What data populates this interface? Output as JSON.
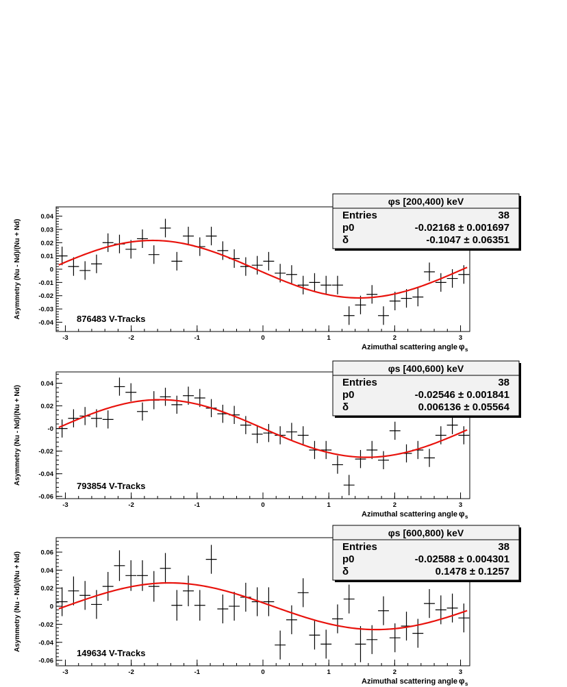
{
  "chart_data": [
    {
      "type": "scatter",
      "title": "φs [200,400) keV",
      "xlabel": "Azimuthal scattering angle",
      "xlabel_symbol": "φ",
      "xlabel_sub": "s",
      "ylabel": "Asymmetry (Nu - Nd)/(Nu + Nd)",
      "annotation": "876483 V-Tracks",
      "stats": [
        {
          "label": "Entries",
          "value": "38"
        },
        {
          "label": "p0",
          "value": "-0.02168 ± 0.001697"
        },
        {
          "label": "δ",
          "value": "-0.1047 ± 0.06351"
        }
      ],
      "xlim": [
        -3.14,
        3.14
      ],
      "ylim": [
        -0.047,
        0.047
      ],
      "yticks": [
        -0.04,
        -0.03,
        -0.02,
        -0.01,
        0,
        0.01,
        0.02,
        0.03,
        0.04
      ],
      "ytick_labels": [
        "-0.04",
        "-0.03",
        "-0.02",
        "-0.01",
        "0",
        "0.01",
        "0.02",
        "0.03",
        "0.04"
      ],
      "xticks": [
        -3,
        -2,
        -1,
        0,
        1,
        2,
        3
      ],
      "xtick_labels": [
        "-3",
        "-2",
        "-1",
        "0",
        "1",
        "2",
        "3"
      ],
      "fit": {
        "amplitude": -0.02168,
        "phase": -0.1047
      },
      "points": {
        "y": [
          0.01,
          0.002,
          -0.001,
          0.004,
          0.02,
          0.019,
          0.015,
          0.023,
          0.011,
          0.031,
          0.006,
          0.025,
          0.017,
          0.025,
          0.014,
          0.008,
          0.002,
          0.003,
          0.006,
          -0.003,
          -0.004,
          -0.012,
          -0.01,
          -0.012,
          -0.012,
          -0.035,
          -0.027,
          -0.019,
          -0.035,
          -0.024,
          -0.022,
          -0.021,
          -0.002,
          -0.01,
          -0.007,
          -0.004
        ],
        "err": [
          0.007,
          0.007,
          0.007,
          0.007,
          0.007,
          0.007,
          0.007,
          0.007,
          0.007,
          0.007,
          0.007,
          0.007,
          0.007,
          0.007,
          0.007,
          0.007,
          0.007,
          0.007,
          0.007,
          0.007,
          0.007,
          0.007,
          0.007,
          0.007,
          0.007,
          0.007,
          0.007,
          0.007,
          0.007,
          0.007,
          0.007,
          0.007,
          0.007,
          0.007,
          0.007,
          0.007
        ]
      }
    },
    {
      "type": "scatter",
      "title": "φs [400,600) keV",
      "xlabel": "Azimuthal scattering angle",
      "xlabel_symbol": "φ",
      "xlabel_sub": "s",
      "ylabel": "Asymmetry (Nu - Nd)/(Nu + Nd)",
      "annotation": "793854 V-Tracks",
      "stats": [
        {
          "label": "Entries",
          "value": "38"
        },
        {
          "label": "p0",
          "value": "-0.02546 ± 0.001841"
        },
        {
          "label": "δ",
          "value": "0.006136 ± 0.05564"
        }
      ],
      "xlim": [
        -3.14,
        3.14
      ],
      "ylim": [
        -0.062,
        0.05
      ],
      "yticks": [
        -0.06,
        -0.04,
        -0.02,
        0,
        0.02,
        0.04
      ],
      "ytick_labels": [
        "-0.06",
        "-0.04",
        "-0.02",
        "-0",
        "0.02",
        "0.04"
      ],
      "xticks": [
        -3,
        -2,
        -1,
        0,
        1,
        2,
        3
      ],
      "xtick_labels": [
        "-3",
        "-2",
        "-1",
        "0",
        "1",
        "2",
        "3"
      ],
      "fit": {
        "amplitude": -0.02546,
        "phase": 0.006136
      },
      "points": {
        "y": [
          0.0,
          0.009,
          0.011,
          0.009,
          0.008,
          0.037,
          0.032,
          0.015,
          0.025,
          0.028,
          0.021,
          0.029,
          0.027,
          0.018,
          0.013,
          0.012,
          0.003,
          -0.005,
          -0.004,
          -0.006,
          -0.003,
          -0.006,
          -0.019,
          -0.019,
          -0.032,
          -0.05,
          -0.027,
          -0.019,
          -0.028,
          -0.002,
          -0.022,
          -0.019,
          -0.026,
          -0.006,
          0.003,
          -0.006
        ],
        "err": [
          0.008,
          0.008,
          0.008,
          0.008,
          0.008,
          0.008,
          0.008,
          0.008,
          0.008,
          0.008,
          0.008,
          0.008,
          0.008,
          0.008,
          0.008,
          0.008,
          0.008,
          0.008,
          0.008,
          0.008,
          0.008,
          0.008,
          0.008,
          0.008,
          0.008,
          0.009,
          0.008,
          0.008,
          0.008,
          0.008,
          0.008,
          0.008,
          0.008,
          0.008,
          0.008,
          0.008
        ]
      }
    },
    {
      "type": "scatter",
      "title": "φs [600,800) keV",
      "xlabel": "Azimuthal scattering angle",
      "xlabel_symbol": "φ",
      "xlabel_sub": "s",
      "ylabel": "Asymmetry (Nu - Nd)/(Nu + Nd)",
      "annotation": "149634 V-Tracks",
      "stats": [
        {
          "label": "Entries",
          "value": "38"
        },
        {
          "label": "p0",
          "value": "-0.02588 ± 0.004301"
        },
        {
          "label": "δ",
          "value": "0.1478 ± 0.1257"
        }
      ],
      "xlim": [
        -3.14,
        3.14
      ],
      "ylim": [
        -0.066,
        0.076
      ],
      "yticks": [
        -0.06,
        -0.04,
        -0.02,
        0,
        0.02,
        0.04,
        0.06
      ],
      "ytick_labels": [
        "-0.06",
        "-0.04",
        "-0.02",
        "0",
        "0.02",
        "0.04",
        "0.06"
      ],
      "xticks": [
        -3,
        -2,
        -1,
        0,
        1,
        2,
        3
      ],
      "xtick_labels": [
        "-3",
        "-2",
        "-1",
        "0",
        "1",
        "2",
        "3"
      ],
      "fit": {
        "amplitude": -0.02588,
        "phase": 0.1478
      },
      "points": {
        "y": [
          0.005,
          0.017,
          0.012,
          0.002,
          0.022,
          0.045,
          0.034,
          0.034,
          0.022,
          0.042,
          0.001,
          0.017,
          0.001,
          0.052,
          -0.003,
          0.0,
          0.01,
          0.005,
          0.005,
          -0.043,
          -0.015,
          0.015,
          -0.032,
          -0.042,
          -0.014,
          0.008,
          -0.042,
          -0.037,
          -0.005,
          -0.035,
          -0.022,
          -0.03,
          0.003,
          -0.004,
          -0.002,
          -0.013
        ],
        "err": [
          0.016,
          0.016,
          0.016,
          0.016,
          0.016,
          0.017,
          0.017,
          0.017,
          0.017,
          0.017,
          0.017,
          0.017,
          0.017,
          0.016,
          0.016,
          0.016,
          0.016,
          0.016,
          0.016,
          0.016,
          0.016,
          0.016,
          0.016,
          0.016,
          0.016,
          0.016,
          0.02,
          0.016,
          0.016,
          0.016,
          0.016,
          0.016,
          0.016,
          0.016,
          0.016,
          0.016
        ]
      }
    }
  ]
}
